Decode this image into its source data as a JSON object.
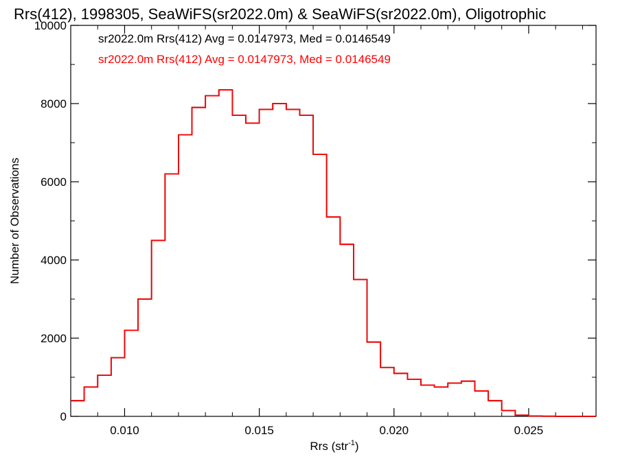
{
  "chart_data": {
    "type": "line",
    "title": "Rrs(412), 1998305, SeaWiFS(sr2022.0m) & SeaWiFS(sr2022.0m), Oligotrophic",
    "xlabel": "Rrs (str",
    "xlabel_sup": "-1",
    "xlabel_close": ")",
    "ylabel": "Number of Observations",
    "xlim": [
      0.008,
      0.0275
    ],
    "ylim": [
      0,
      10000
    ],
    "xticks": [
      0.01,
      0.015,
      0.02,
      0.025
    ],
    "xtick_labels": [
      "0.010",
      "0.015",
      "0.020",
      "0.025"
    ],
    "yticks": [
      0,
      2000,
      4000,
      6000,
      8000,
      10000
    ],
    "ytick_labels": [
      "0",
      "2000",
      "4000",
      "6000",
      "8000",
      "10000"
    ],
    "grid": false,
    "annotations": [
      {
        "text": "sr2022.0m Rrs(412) Avg = 0.0147973, Med = 0.0146549",
        "color": "#000000"
      },
      {
        "text": "sr2022.0m Rrs(412) Avg = 0.0147973, Med = 0.0146549",
        "color": "#ff0000"
      }
    ],
    "series": [
      {
        "color": "#000000",
        "x": [
          0.008,
          0.0085,
          0.009,
          0.0095,
          0.01,
          0.0105,
          0.011,
          0.0115,
          0.012,
          0.0125,
          0.013,
          0.0135,
          0.014,
          0.0145,
          0.015,
          0.0155,
          0.016,
          0.0165,
          0.017,
          0.0175,
          0.018,
          0.0185,
          0.019,
          0.0195,
          0.02,
          0.0205,
          0.021,
          0.0215,
          0.022,
          0.0225,
          0.023,
          0.0235,
          0.024,
          0.0245,
          0.025,
          0.0255,
          0.026,
          0.0265,
          0.027,
          0.0275
        ],
        "y": [
          400,
          750,
          1050,
          1500,
          2200,
          3000,
          4500,
          6200,
          7200,
          7900,
          8200,
          8350,
          7700,
          7500,
          7850,
          8000,
          7850,
          7700,
          6700,
          5100,
          4400,
          3500,
          1900,
          1250,
          1100,
          950,
          800,
          750,
          850,
          900,
          650,
          400,
          150,
          30,
          10,
          5,
          0,
          0,
          0,
          0
        ]
      },
      {
        "color": "#ff0000",
        "x": [
          0.008,
          0.0085,
          0.009,
          0.0095,
          0.01,
          0.0105,
          0.011,
          0.0115,
          0.012,
          0.0125,
          0.013,
          0.0135,
          0.014,
          0.0145,
          0.015,
          0.0155,
          0.016,
          0.0165,
          0.017,
          0.0175,
          0.018,
          0.0185,
          0.019,
          0.0195,
          0.02,
          0.0205,
          0.021,
          0.0215,
          0.022,
          0.0225,
          0.023,
          0.0235,
          0.024,
          0.0245,
          0.025,
          0.0255,
          0.026,
          0.0265,
          0.027,
          0.0275
        ],
        "y": [
          400,
          750,
          1050,
          1500,
          2200,
          3000,
          4500,
          6200,
          7200,
          7900,
          8200,
          8350,
          7700,
          7500,
          7850,
          8000,
          7850,
          7700,
          6700,
          5100,
          4400,
          3500,
          1900,
          1250,
          1100,
          950,
          800,
          750,
          850,
          900,
          650,
          400,
          150,
          30,
          10,
          5,
          0,
          0,
          0,
          0
        ]
      }
    ]
  }
}
